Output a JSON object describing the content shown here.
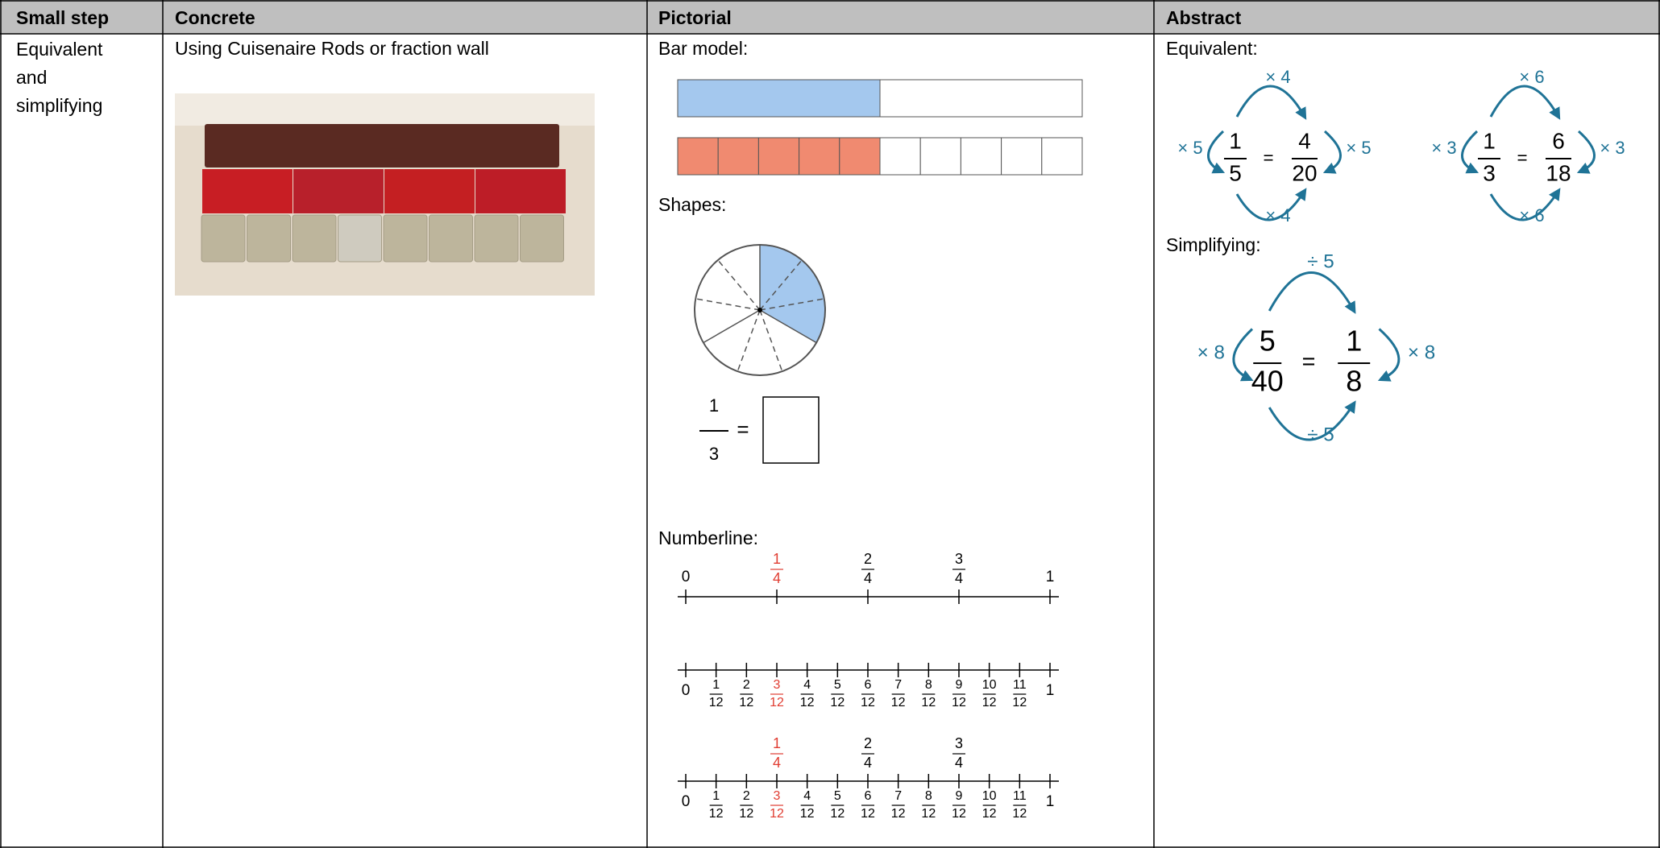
{
  "table": {
    "headers": [
      "Small step",
      "Concrete",
      "Pictorial",
      "Abstract"
    ],
    "row": {
      "small_step": "Equivalent and simplifying",
      "concrete": "Using Cuisenaire Rods or fraction wall",
      "pictorial": {
        "bar_model_label": "Bar model:",
        "shapes_label": "Shapes:",
        "equation": {
          "num": "1",
          "den": "3",
          "equals": "="
        },
        "numberline_label": "Numberline:",
        "numberlines": [
          {
            "start": "0",
            "end": "1",
            "ends": "above",
            "above": [
              {
                "num": "1",
                "den": "4",
                "color": "#e03c31"
              },
              {
                "num": "2",
                "den": "4"
              },
              {
                "num": "3",
                "den": "4"
              }
            ]
          },
          {
            "start": "0",
            "end": "1",
            "ends": "below",
            "below": [
              {
                "num": "1",
                "den": "12"
              },
              {
                "num": "2",
                "den": "12"
              },
              {
                "num": "3",
                "den": "12",
                "color": "#e03c31"
              },
              {
                "num": "4",
                "den": "12"
              },
              {
                "num": "5",
                "den": "12"
              },
              {
                "num": "6",
                "den": "12"
              },
              {
                "num": "7",
                "den": "12"
              },
              {
                "num": "8",
                "den": "12"
              },
              {
                "num": "9",
                "den": "12"
              },
              {
                "num": "10",
                "den": "12"
              },
              {
                "num": "11",
                "den": "12"
              }
            ]
          },
          {
            "start": "0",
            "end": "1",
            "ends": "below",
            "above": [
              {
                "num": "1",
                "den": "4",
                "color": "#e03c31"
              },
              {
                "num": "2",
                "den": "4"
              },
              {
                "num": "3",
                "den": "4"
              }
            ],
            "below": [
              {
                "num": "1",
                "den": "12"
              },
              {
                "num": "2",
                "den": "12"
              },
              {
                "num": "3",
                "den": "12",
                "color": "#e03c31"
              },
              {
                "num": "4",
                "den": "12"
              },
              {
                "num": "5",
                "den": "12"
              },
              {
                "num": "6",
                "den": "12"
              },
              {
                "num": "7",
                "den": "12"
              },
              {
                "num": "8",
                "den": "12"
              },
              {
                "num": "9",
                "den": "12"
              },
              {
                "num": "10",
                "den": "12"
              },
              {
                "num": "11",
                "den": "12"
              }
            ]
          }
        ]
      },
      "abstract": {
        "color": "#1f7396",
        "equivalent_label": "Equivalent:",
        "equivalents": [
          {
            "lhs": {
              "num": "1",
              "den": "5"
            },
            "equals": "=",
            "rhs": {
              "num": "4",
              "den": "20"
            },
            "top": "× 4",
            "bottom": "× 4",
            "left": "× 5",
            "right": "× 5"
          },
          {
            "lhs": {
              "num": "1",
              "den": "3"
            },
            "equals": "=",
            "rhs": {
              "num": "6",
              "den": "18"
            },
            "top": "× 6",
            "bottom": "× 6",
            "left": "× 3",
            "right": "× 3"
          }
        ],
        "simplifying_label": "Simplifying:",
        "simplifying": {
          "lhs": {
            "num": "5",
            "den": "40"
          },
          "equals": "=",
          "rhs": {
            "num": "1",
            "den": "8"
          },
          "top": "÷ 5",
          "bottom": "÷ 5",
          "left": "× 8",
          "right": "× 8"
        }
      }
    }
  }
}
